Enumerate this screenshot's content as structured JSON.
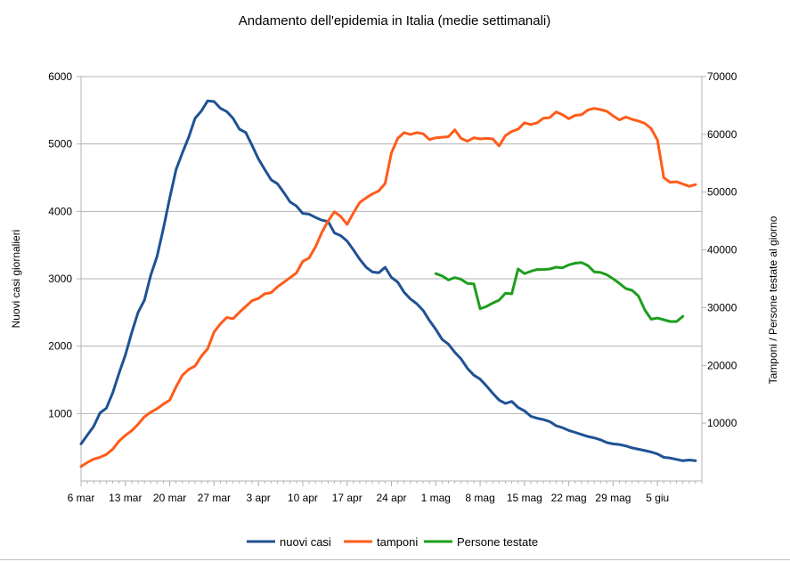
{
  "chart_data": {
    "type": "line",
    "title": "Andamento dell'epidemia in Italia (medie settimanali)",
    "xlabel": "",
    "ylabel": "Nuovi casi giornalieri",
    "y2label": "Tamponi / Persone testate al giorno",
    "ylim": [
      0,
      6000
    ],
    "y2lim": [
      0,
      70000
    ],
    "yticks": [
      "1000",
      "2000",
      "3000",
      "4000",
      "5000",
      "6000"
    ],
    "y2ticks": [
      "10000",
      "20000",
      "30000",
      "40000",
      "50000",
      "60000",
      "70000"
    ],
    "xticks": [
      "6 mar",
      "13 mar",
      "20 mar",
      "27 mar",
      "3 apr",
      "10 apr",
      "17 apr",
      "24 apr",
      "1 mag",
      "8 mag",
      "15 mag",
      "22 mag",
      "29 mag",
      "5 giu"
    ],
    "x_start": "6 mar",
    "grid": true,
    "legend": "bottom",
    "series": [
      {
        "name": "nuovi casi",
        "axis": "left",
        "color": "#1f5294",
        "values": [
          550,
          680,
          810,
          1010,
          1080,
          1310,
          1600,
          1870,
          2200,
          2500,
          2680,
          3050,
          3330,
          3750,
          4200,
          4620,
          4870,
          5100,
          5380,
          5490,
          5640,
          5630,
          5530,
          5480,
          5380,
          5220,
          5170,
          4980,
          4780,
          4620,
          4470,
          4410,
          4280,
          4140,
          4080,
          3970,
          3960,
          3910,
          3870,
          3850,
          3680,
          3640,
          3560,
          3430,
          3290,
          3170,
          3100,
          3090,
          3170,
          3020,
          2950,
          2800,
          2700,
          2630,
          2530,
          2380,
          2250,
          2100,
          2030,
          1910,
          1810,
          1670,
          1570,
          1510,
          1410,
          1300,
          1200,
          1150,
          1180,
          1090,
          1040,
          960,
          930,
          910,
          880,
          820,
          790,
          750,
          720,
          690,
          660,
          640,
          610,
          570,
          550,
          540,
          520,
          490,
          470,
          450,
          430,
          400,
          350,
          340,
          320,
          300,
          310,
          300
        ],
        "x_offset": 0
      },
      {
        "name": "tamponi",
        "axis": "right",
        "color": "#ff5b1a",
        "values": [
          2500,
          3200,
          3800,
          4100,
          4600,
          5500,
          6900,
          7900,
          8700,
          9800,
          11100,
          11900,
          12500,
          13300,
          14000,
          16300,
          18300,
          19300,
          19900,
          21600,
          22900,
          25800,
          27200,
          28300,
          28100,
          29200,
          30200,
          31200,
          31600,
          32400,
          32600,
          33600,
          34400,
          35200,
          36000,
          38000,
          38600,
          40500,
          43000,
          45000,
          46600,
          45800,
          44400,
          46400,
          48200,
          49000,
          49700,
          50200,
          51500,
          56800,
          59300,
          60300,
          60000,
          60300,
          60100,
          59100,
          59400,
          59500,
          59600,
          60800,
          59300,
          58800,
          59400,
          59200,
          59300,
          59200,
          58000,
          59800,
          60500,
          60900,
          62000,
          61700,
          62000,
          62800,
          62900,
          63900,
          63400,
          62700,
          63300,
          63400,
          64200,
          64500,
          64300,
          64000,
          63200,
          62500,
          63000,
          62600,
          62300,
          61900,
          61000,
          59000,
          52500,
          51700,
          51800,
          51400,
          51000,
          51300
        ],
        "x_offset": 0
      },
      {
        "name": "Persone testate",
        "axis": "right",
        "color": "#1e9e1e",
        "values": [
          35900,
          35500,
          34800,
          35200,
          34900,
          34200,
          34100,
          29800,
          30200,
          30800,
          31300,
          32500,
          32400,
          36700,
          35900,
          36300,
          36600,
          36600,
          36700,
          37000,
          36900,
          37400,
          37700,
          37800,
          37300,
          36200,
          36100,
          35700,
          35000,
          34200,
          33300,
          33000,
          32000,
          29600,
          28000,
          28200,
          27900,
          27600,
          27600,
          28500
        ],
        "x_offset": 56
      }
    ]
  }
}
